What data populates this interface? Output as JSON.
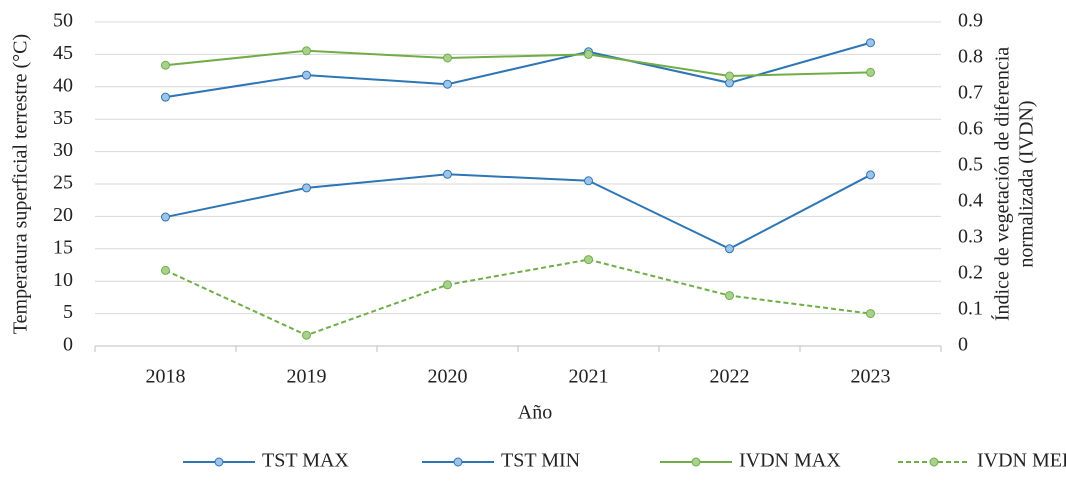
{
  "chart_data": {
    "type": "line",
    "xlabel": "Año",
    "ylabel": "Temperatura superficial terrestre (°C)",
    "y2label": [
      "Índice de vegetación de diferencia",
      "normalizada (IVDN)"
    ],
    "categories": [
      "2018",
      "2019",
      "2020",
      "2021",
      "2022",
      "2023"
    ],
    "ylim": [
      0,
      50
    ],
    "yticks": [
      0,
      5,
      10,
      15,
      20,
      25,
      30,
      35,
      40,
      45,
      50
    ],
    "y2lim": [
      0,
      0.9
    ],
    "y2ticks": [
      0,
      0.1,
      0.2,
      0.3,
      0.4,
      0.5,
      0.6,
      0.7,
      0.8,
      0.9
    ],
    "grid": true,
    "legend": "bottom",
    "series": [
      {
        "name": "TST MAX",
        "color": "#2e75b6",
        "marker_fill": "#9dc3e6",
        "dashed": false,
        "values": [
          38.4,
          41.8,
          40.4,
          45.4,
          40.6,
          46.8
        ]
      },
      {
        "name": "TST MIN",
        "color": "#2e75b6",
        "marker_fill": "#9dc3e6",
        "dashed": false,
        "values": [
          19.9,
          24.4,
          26.5,
          25.5,
          15.0,
          26.4
        ]
      },
      {
        "name": "IVDN MAX",
        "color": "#70ad47",
        "marker_fill": "#a9d18e",
        "dashed": false,
        "axis": "y2",
        "values": [
          0.78,
          0.82,
          0.8,
          0.81,
          0.75,
          0.76
        ]
      },
      {
        "name": "IVDN MED",
        "color": "#70ad47",
        "marker_fill": "#a9d18e",
        "dashed": true,
        "axis": "y2",
        "values": [
          0.21,
          0.03,
          0.17,
          0.24,
          0.14,
          0.09
        ]
      }
    ]
  }
}
